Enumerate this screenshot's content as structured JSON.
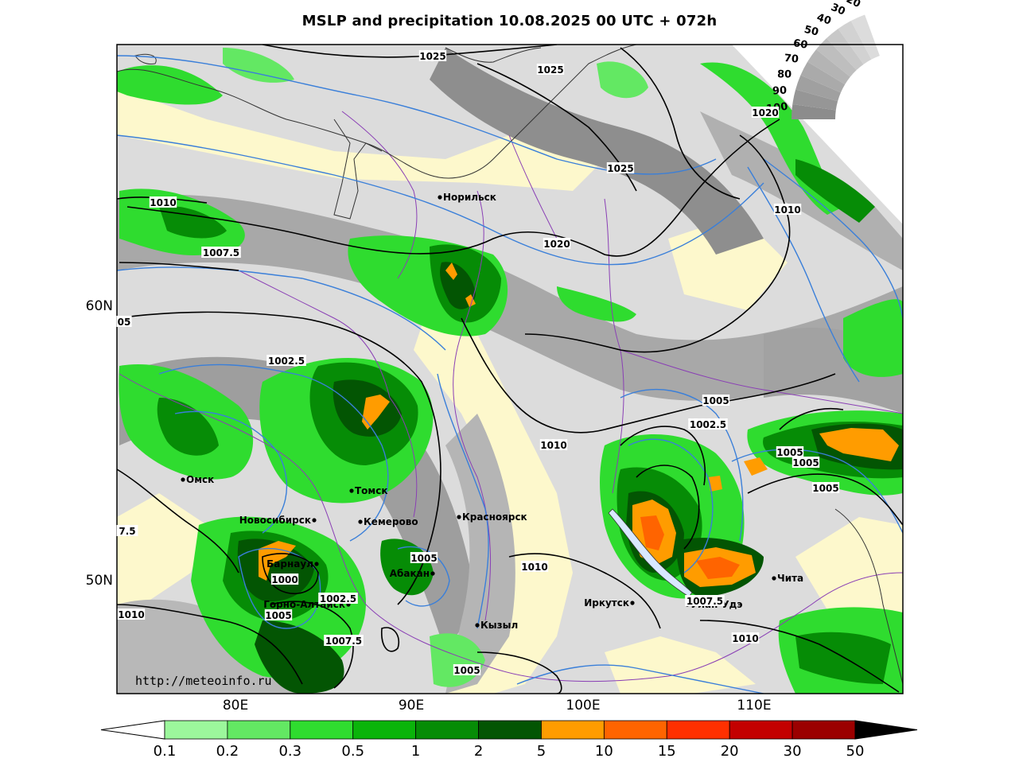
{
  "title": "MSLP and precipitation 10.08.2025 00 UTC + 072h",
  "url": "http://meteoinfo.ru",
  "lat_labels": [
    "60N",
    "50N"
  ],
  "lon_labels": [
    "80E",
    "90E",
    "100E",
    "110E"
  ],
  "cities": [
    {
      "name": "Норильск"
    },
    {
      "name": "Омск"
    },
    {
      "name": "Томск"
    },
    {
      "name": "Новосибирск"
    },
    {
      "name": "Кемерово"
    },
    {
      "name": "Красноярск"
    },
    {
      "name": "Барнаул"
    },
    {
      "name": "Абакан"
    },
    {
      "name": "Горно-Алтайск"
    },
    {
      "name": "Кызыл"
    },
    {
      "name": "Иркутск"
    },
    {
      "name": "Улан-Удэ"
    },
    {
      "name": "Чита"
    }
  ],
  "isobar_labels": [
    "1025",
    "1025",
    "1025",
    "1020",
    "1020",
    "1010",
    "1010",
    "1007.5",
    "05",
    "1002.5",
    "1005",
    "1002.5",
    "1005",
    "1005",
    "1005",
    "1010",
    "1010",
    "7.5",
    "1000",
    "1002.5",
    "1005",
    "1007.5",
    "1005",
    "1010",
    "1010",
    "1007.5",
    "1005",
    "1010"
  ],
  "cloud_scale": [
    "100",
    "90",
    "80",
    "70",
    "60",
    "50",
    "40",
    "30",
    "20"
  ],
  "colorbar": {
    "ticks": [
      "0.1",
      "0.2",
      "0.3",
      "0.5",
      "1",
      "2",
      "5",
      "10",
      "15",
      "20",
      "30",
      "50"
    ],
    "colors": [
      "#9cf79c",
      "#63e863",
      "#2fdc2f",
      "#0ab40a",
      "#068c06",
      "#035503",
      "#ff9c00",
      "#ff6400",
      "#ff3000",
      "#c30000",
      "#9b0000",
      "#000000"
    ]
  }
}
